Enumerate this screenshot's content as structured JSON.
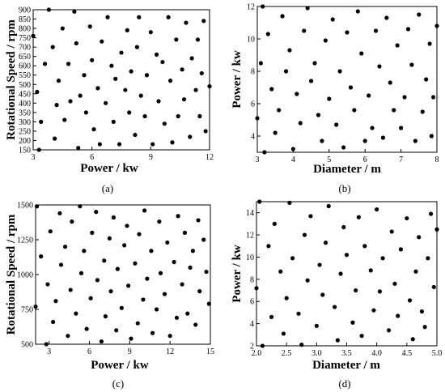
{
  "figure": {
    "panels": [
      {
        "id": "a",
        "label": "(a)"
      },
      {
        "id": "b",
        "label": "(b)"
      },
      {
        "id": "c",
        "label": "(c)"
      },
      {
        "id": "d",
        "label": "(d)"
      }
    ]
  },
  "chart_data": [
    {
      "type": "scatter",
      "panel": "(a)",
      "xlabel": "Power / kw",
      "ylabel": "Rotational Speed / rpm",
      "xlim": [
        3,
        12
      ],
      "ylim": [
        150,
        900
      ],
      "xticks": [
        "3",
        "6",
        "9",
        "12"
      ],
      "yticks": [
        "150",
        "200",
        "250",
        "300",
        "350",
        "400",
        "450",
        "500",
        "550",
        "600",
        "650",
        "700",
        "750",
        "800",
        "850",
        "900"
      ],
      "grid": false,
      "points": [
        [
          3.0,
          760
        ],
        [
          3.2,
          460
        ],
        [
          3.3,
          150
        ],
        [
          3.4,
          300
        ],
        [
          3.6,
          610
        ],
        [
          3.8,
          900
        ],
        [
          4.0,
          700
        ],
        [
          4.1,
          210
        ],
        [
          4.2,
          390
        ],
        [
          4.3,
          520
        ],
        [
          4.5,
          800
        ],
        [
          4.6,
          310
        ],
        [
          4.8,
          610
        ],
        [
          4.9,
          410
        ],
        [
          5.1,
          890
        ],
        [
          5.2,
          720
        ],
        [
          5.3,
          160
        ],
        [
          5.4,
          440
        ],
        [
          5.6,
          550
        ],
        [
          5.7,
          350
        ],
        [
          5.9,
          810
        ],
        [
          6.0,
          630
        ],
        [
          6.1,
          260
        ],
        [
          6.3,
          480
        ],
        [
          6.4,
          180
        ],
        [
          6.5,
          730
        ],
        [
          6.7,
          400
        ],
        [
          6.8,
          860
        ],
        [
          7.0,
          600
        ],
        [
          7.1,
          300
        ],
        [
          7.2,
          530
        ],
        [
          7.4,
          180
        ],
        [
          7.5,
          670
        ],
        [
          7.7,
          470
        ],
        [
          7.8,
          790
        ],
        [
          7.9,
          350
        ],
        [
          8.0,
          570
        ],
        [
          8.2,
          230
        ],
        [
          8.3,
          700
        ],
        [
          8.4,
          860
        ],
        [
          8.5,
          440
        ],
        [
          8.7,
          330
        ],
        [
          8.8,
          550
        ],
        [
          9.0,
          780
        ],
        [
          9.1,
          180
        ],
        [
          9.3,
          660
        ],
        [
          9.4,
          410
        ],
        [
          9.6,
          620
        ],
        [
          9.7,
          290
        ],
        [
          9.9,
          860
        ],
        [
          10.0,
          520
        ],
        [
          10.1,
          190
        ],
        [
          10.3,
          740
        ],
        [
          10.4,
          330
        ],
        [
          10.6,
          580
        ],
        [
          10.7,
          420
        ],
        [
          10.8,
          830
        ],
        [
          11.0,
          220
        ],
        [
          11.1,
          640
        ],
        [
          11.3,
          470
        ],
        [
          11.4,
          740
        ],
        [
          11.5,
          330
        ],
        [
          11.6,
          560
        ],
        [
          11.7,
          840
        ],
        [
          11.8,
          250
        ],
        [
          12.0,
          490
        ]
      ]
    },
    {
      "type": "scatter",
      "panel": "(b)",
      "xlabel": "Diameter / m",
      "ylabel": "Power / kw",
      "xlim": [
        3,
        8
      ],
      "ylim": [
        3,
        12
      ],
      "xticks": [
        "3",
        "4",
        "5",
        "6",
        "7",
        "8"
      ],
      "yticks": [
        "4",
        "6",
        "8",
        "10",
        "12"
      ],
      "grid": false,
      "points": [
        [
          3.0,
          5.1
        ],
        [
          3.1,
          8.5
        ],
        [
          3.15,
          12.0
        ],
        [
          3.2,
          3.0
        ],
        [
          3.3,
          10.3
        ],
        [
          3.4,
          6.9
        ],
        [
          3.5,
          4.2
        ],
        [
          3.6,
          5.6
        ],
        [
          3.7,
          11.4
        ],
        [
          3.8,
          8.0
        ],
        [
          3.9,
          9.3
        ],
        [
          4.0,
          3.2
        ],
        [
          4.1,
          6.6
        ],
        [
          4.2,
          4.8
        ],
        [
          4.3,
          10.5
        ],
        [
          4.4,
          11.9
        ],
        [
          4.5,
          7.4
        ],
        [
          4.6,
          8.5
        ],
        [
          4.7,
          5.3
        ],
        [
          4.8,
          3.7
        ],
        [
          4.9,
          9.9
        ],
        [
          5.0,
          6.3
        ],
        [
          5.1,
          11.2
        ],
        [
          5.2,
          4.7
        ],
        [
          5.3,
          8.0
        ],
        [
          5.4,
          3.3
        ],
        [
          5.5,
          10.4
        ],
        [
          5.6,
          7.0
        ],
        [
          5.7,
          5.6
        ],
        [
          5.8,
          11.7
        ],
        [
          5.9,
          9.1
        ],
        [
          6.0,
          3.7
        ],
        [
          6.1,
          6.5
        ],
        [
          6.2,
          4.5
        ],
        [
          6.3,
          10.5
        ],
        [
          6.4,
          8.3
        ],
        [
          6.5,
          3.9
        ],
        [
          6.6,
          11.3
        ],
        [
          6.7,
          7.3
        ],
        [
          6.8,
          5.6
        ],
        [
          6.9,
          9.6
        ],
        [
          7.0,
          4.5
        ],
        [
          7.1,
          6.4
        ],
        [
          7.2,
          10.6
        ],
        [
          7.3,
          8.4
        ],
        [
          7.4,
          3.7
        ],
        [
          7.5,
          11.5
        ],
        [
          7.6,
          5.5
        ],
        [
          7.7,
          7.5
        ],
        [
          7.8,
          9.7
        ],
        [
          7.85,
          4.0
        ],
        [
          7.9,
          6.4
        ],
        [
          8.0,
          10.8
        ]
      ]
    },
    {
      "type": "scatter",
      "panel": "(c)",
      "xlabel": "Power / kw",
      "ylabel": "Rotational Speed / rpm",
      "xlim": [
        2,
        15
      ],
      "ylim": [
        500,
        1500
      ],
      "xticks": [
        "3",
        "6",
        "9",
        "12",
        "15"
      ],
      "yticks": [
        "500",
        "750",
        "1000",
        "1250",
        "1500"
      ],
      "grid": false,
      "points": [
        [
          2.0,
          770
        ],
        [
          2.1,
          1490
        ],
        [
          2.4,
          1130
        ],
        [
          2.8,
          500
        ],
        [
          2.9,
          930
        ],
        [
          3.1,
          1310
        ],
        [
          3.3,
          660
        ],
        [
          3.5,
          810
        ],
        [
          3.8,
          1440
        ],
        [
          3.9,
          1070
        ],
        [
          4.2,
          1200
        ],
        [
          4.4,
          560
        ],
        [
          4.6,
          890
        ],
        [
          4.7,
          1380
        ],
        [
          5.0,
          720
        ],
        [
          5.3,
          1490
        ],
        [
          5.4,
          1010
        ],
        [
          5.6,
          1170
        ],
        [
          5.8,
          610
        ],
        [
          6.1,
          830
        ],
        [
          6.2,
          1300
        ],
        [
          6.5,
          1450
        ],
        [
          6.6,
          960
        ],
        [
          6.9,
          520
        ],
        [
          7.1,
          1100
        ],
        [
          7.2,
          700
        ],
        [
          7.5,
          1260
        ],
        [
          7.6,
          880
        ],
        [
          7.8,
          1410
        ],
        [
          8.0,
          600
        ],
        [
          8.1,
          1040
        ],
        [
          8.4,
          760
        ],
        [
          8.6,
          1210
        ],
        [
          8.8,
          1350
        ],
        [
          8.9,
          920
        ],
        [
          9.1,
          540
        ],
        [
          9.4,
          1080
        ],
        [
          9.6,
          650
        ],
        [
          9.7,
          1290
        ],
        [
          10.0,
          820
        ],
        [
          10.1,
          1460
        ],
        [
          10.3,
          970
        ],
        [
          10.6,
          1170
        ],
        [
          10.7,
          580
        ],
        [
          11.0,
          750
        ],
        [
          11.2,
          1380
        ],
        [
          11.3,
          1010
        ],
        [
          11.6,
          860
        ],
        [
          11.8,
          1230
        ],
        [
          12.0,
          560
        ],
        [
          12.3,
          1090
        ],
        [
          12.5,
          690
        ],
        [
          12.6,
          1420
        ],
        [
          12.9,
          930
        ],
        [
          13.1,
          1300
        ],
        [
          13.3,
          720
        ],
        [
          13.5,
          1050
        ],
        [
          13.7,
          1170
        ],
        [
          13.9,
          640
        ],
        [
          14.1,
          1390
        ],
        [
          14.2,
          880
        ],
        [
          14.5,
          1250
        ],
        [
          14.7,
          1020
        ],
        [
          14.9,
          790
        ]
      ]
    },
    {
      "type": "scatter",
      "panel": "(d)",
      "xlabel": "Diameter / m",
      "ylabel": "Power / kw",
      "xlim": [
        2.0,
        5.0
      ],
      "ylim": [
        2,
        15
      ],
      "xticks": [
        "2.0",
        "2.5",
        "3.0",
        "3.5",
        "4.0",
        "4.5",
        "5.0"
      ],
      "yticks": [
        "2",
        "4",
        "6",
        "8",
        "10",
        "12",
        "14"
      ],
      "grid": false,
      "points": [
        [
          2.0,
          7.2
        ],
        [
          2.05,
          15.0
        ],
        [
          2.1,
          2.0
        ],
        [
          2.2,
          11.0
        ],
        [
          2.25,
          4.6
        ],
        [
          2.3,
          13.0
        ],
        [
          2.4,
          8.7
        ],
        [
          2.45,
          3.1
        ],
        [
          2.5,
          6.3
        ],
        [
          2.55,
          14.9
        ],
        [
          2.6,
          9.9
        ],
        [
          2.7,
          4.9
        ],
        [
          2.75,
          2.1
        ],
        [
          2.8,
          12.0
        ],
        [
          2.85,
          7.9
        ],
        [
          2.9,
          13.7
        ],
        [
          3.0,
          3.8
        ],
        [
          3.05,
          9.3
        ],
        [
          3.1,
          6.6
        ],
        [
          3.15,
          11.3
        ],
        [
          3.2,
          14.6
        ],
        [
          3.3,
          5.5
        ],
        [
          3.35,
          2.5
        ],
        [
          3.4,
          8.5
        ],
        [
          3.45,
          12.7
        ],
        [
          3.5,
          10.2
        ],
        [
          3.6,
          4.1
        ],
        [
          3.65,
          7.0
        ],
        [
          3.7,
          13.6
        ],
        [
          3.75,
          2.9
        ],
        [
          3.8,
          11.0
        ],
        [
          3.9,
          8.8
        ],
        [
          3.95,
          5.2
        ],
        [
          4.0,
          14.3
        ],
        [
          4.05,
          6.9
        ],
        [
          4.1,
          9.9
        ],
        [
          4.2,
          3.4
        ],
        [
          4.25,
          12.3
        ],
        [
          4.3,
          7.6
        ],
        [
          4.35,
          4.7
        ],
        [
          4.4,
          10.7
        ],
        [
          4.5,
          13.5
        ],
        [
          4.55,
          6.1
        ],
        [
          4.6,
          2.6
        ],
        [
          4.65,
          8.7
        ],
        [
          4.7,
          11.8
        ],
        [
          4.75,
          5.1
        ],
        [
          4.8,
          3.7
        ],
        [
          4.85,
          9.9
        ],
        [
          4.9,
          13.9
        ],
        [
          4.95,
          7.3
        ],
        [
          5.0,
          12.5
        ]
      ]
    }
  ]
}
